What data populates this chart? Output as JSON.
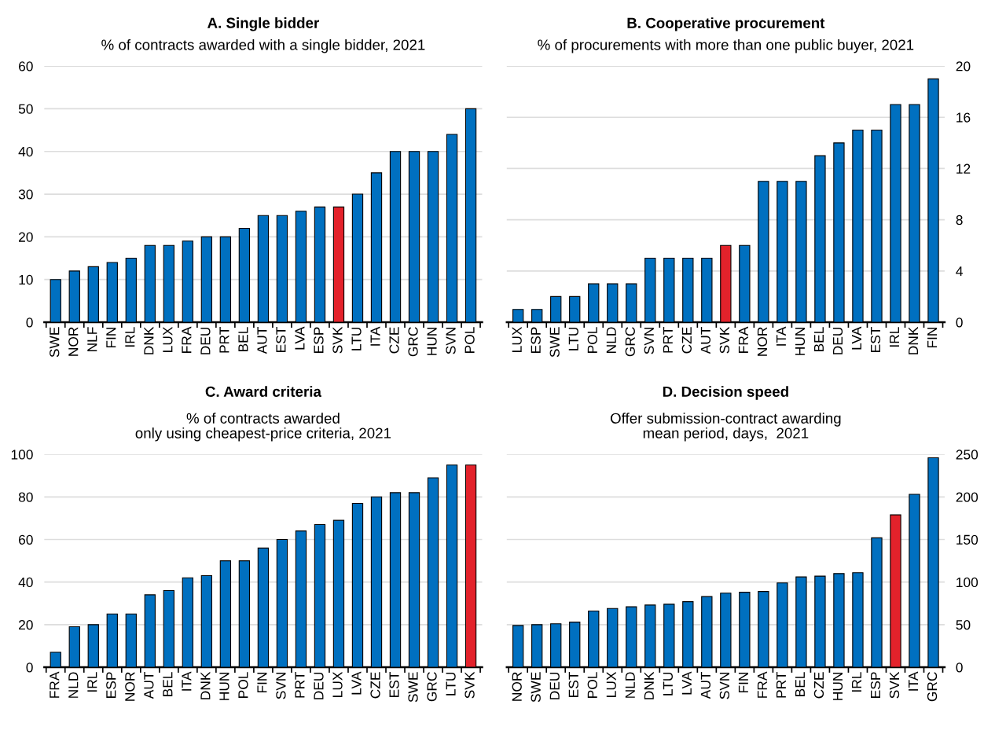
{
  "chart_data": [
    {
      "type": "bar",
      "title": "A. Single bidder",
      "subtitle": "% of contracts awarded with a single bidder, 2021",
      "categories": [
        "SWE",
        "NOR",
        "NLF",
        "FIN",
        "IRL",
        "DNK",
        "LUX",
        "FRA",
        "DEU",
        "PRT",
        "BEL",
        "AUT",
        "EST",
        "LVA",
        "ESP",
        "SVK",
        "LTU",
        "ITA",
        "CZE",
        "GRC",
        "HUN",
        "SVN",
        "POL"
      ],
      "series": [
        {
          "values": [
            10,
            12,
            13,
            14,
            15,
            18,
            18,
            19,
            20,
            20,
            22,
            25,
            25,
            26,
            27,
            27,
            30,
            35,
            40,
            40,
            40,
            44,
            50
          ],
          "colors": [
            "#0070c0",
            "#0070c0",
            "#0070c0",
            "#0070c0",
            "#0070c0",
            "#0070c0",
            "#0070c0",
            "#0070c0",
            "#0070c0",
            "#0070c0",
            "#0070c0",
            "#0070c0",
            "#0070c0",
            "#0070c0",
            "#0070c0",
            "#e3222b",
            "#0070c0",
            "#0070c0",
            "#0070c0",
            "#0070c0",
            "#0070c0",
            "#0070c0",
            "#0070c0"
          ]
        }
      ],
      "ylim": [
        0,
        60
      ],
      "yticks": [
        0,
        10,
        20,
        30,
        40,
        50,
        60
      ],
      "grid": "y"
    },
    {
      "type": "bar",
      "title": "B. Cooperative procurement",
      "subtitle": "% of procurements with more than one public buyer, 2021",
      "categories": [
        "LUX",
        "ESP",
        "SWE",
        "LTU",
        "POL",
        "NLD",
        "GRC",
        "SVN",
        "PRT",
        "CZE",
        "AUT",
        "SVK",
        "FRA",
        "NOR",
        "ITA",
        "HUN",
        "BEL",
        "DEU",
        "LVA",
        "EST",
        "IRL",
        "DNK",
        "FIN"
      ],
      "series": [
        {
          "axis": "y2",
          "values": [
            1,
            1,
            2,
            2,
            3,
            3,
            3,
            5,
            5,
            5,
            5,
            6,
            6,
            11,
            11,
            11,
            13,
            14,
            15,
            15,
            17,
            17,
            19
          ],
          "colors": [
            "#0070c0",
            "#0070c0",
            "#0070c0",
            "#0070c0",
            "#0070c0",
            "#0070c0",
            "#0070c0",
            "#0070c0",
            "#0070c0",
            "#0070c0",
            "#0070c0",
            "#e3222b",
            "#0070c0",
            "#0070c0",
            "#0070c0",
            "#0070c0",
            "#0070c0",
            "#0070c0",
            "#0070c0",
            "#0070c0",
            "#0070c0",
            "#0070c0",
            "#0070c0"
          ]
        }
      ],
      "y2lim": [
        0,
        20
      ],
      "y2ticks": [
        0,
        4,
        8,
        12,
        16,
        20
      ],
      "grid": "y"
    },
    {
      "type": "bar",
      "title": "C. Award criteria",
      "subtitle": "% of contracts awarded\nonly using cheapest-price criteria, 2021",
      "categories": [
        "FRA",
        "NLD",
        "IRL",
        "ESP",
        "NOR",
        "AUT",
        "BEL",
        "ITA",
        "DNK",
        "HUN",
        "POL",
        "FIN",
        "SVN",
        "PRT",
        "DEU",
        "LUX",
        "LVA",
        "CZE",
        "EST",
        "SWE",
        "GRC",
        "LTU",
        "SVK"
      ],
      "series": [
        {
          "values": [
            7,
            19,
            20,
            25,
            25,
            34,
            36,
            42,
            43,
            50,
            50,
            56,
            60,
            64,
            67,
            69,
            77,
            80,
            82,
            82,
            89,
            95,
            95
          ],
          "colors": [
            "#0070c0",
            "#0070c0",
            "#0070c0",
            "#0070c0",
            "#0070c0",
            "#0070c0",
            "#0070c0",
            "#0070c0",
            "#0070c0",
            "#0070c0",
            "#0070c0",
            "#0070c0",
            "#0070c0",
            "#0070c0",
            "#0070c0",
            "#0070c0",
            "#0070c0",
            "#0070c0",
            "#0070c0",
            "#0070c0",
            "#0070c0",
            "#0070c0",
            "#e3222b"
          ]
        }
      ],
      "ylim": [
        0,
        100
      ],
      "yticks": [
        0,
        20,
        40,
        60,
        80,
        100
      ],
      "grid": "y"
    },
    {
      "type": "bar",
      "title": "D. Decision speed",
      "subtitle": "Offer submission-contract awarding\nmean period, days,  2021",
      "categories": [
        "NOR",
        "SWE",
        "DEU",
        "EST",
        "POL",
        "LUX",
        "NLD",
        "DNK",
        "LTU",
        "LVA",
        "AUT",
        "SVN",
        "FIN",
        "FRA",
        "PRT",
        "BEL",
        "CZE",
        "HUN",
        "IRL",
        "ESP",
        "SVK",
        "ITA",
        "GRC"
      ],
      "series": [
        {
          "axis": "y2",
          "values": [
            49,
            50,
            51,
            53,
            66,
            69,
            71,
            73,
            74,
            77,
            83,
            87,
            88,
            89,
            99,
            106,
            107,
            110,
            111,
            152,
            179,
            203,
            246
          ],
          "colors": [
            "#0070c0",
            "#0070c0",
            "#0070c0",
            "#0070c0",
            "#0070c0",
            "#0070c0",
            "#0070c0",
            "#0070c0",
            "#0070c0",
            "#0070c0",
            "#0070c0",
            "#0070c0",
            "#0070c0",
            "#0070c0",
            "#0070c0",
            "#0070c0",
            "#0070c0",
            "#0070c0",
            "#0070c0",
            "#0070c0",
            "#e3222b",
            "#0070c0",
            "#0070c0"
          ]
        }
      ],
      "y2lim": [
        0,
        250
      ],
      "y2ticks": [
        0,
        50,
        100,
        150,
        200,
        250
      ],
      "grid": "y"
    }
  ]
}
